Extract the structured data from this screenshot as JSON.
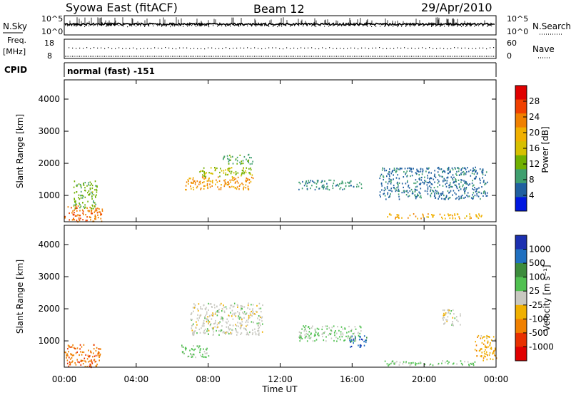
{
  "header": {
    "title": "Syowa East (fitACF)",
    "beam": "Beam 12",
    "date": "29/Apr/2010"
  },
  "strip_panels": {
    "noise": {
      "left_label": "N.Sky",
      "right_label": "N.Search",
      "left_ticks": [
        "10^5",
        "10^0"
      ],
      "right_ticks": [
        "10^5",
        "10^0"
      ]
    },
    "freq": {
      "left_label_top": "Freq.",
      "left_label_unit": "[MHz]",
      "right_label": "Nave",
      "left_ticks": [
        "18",
        "8"
      ],
      "right_ticks": [
        "60",
        "0"
      ]
    },
    "cpid": {
      "label": "CPID",
      "value": "normal (fast) -151"
    }
  },
  "power_panel": {
    "ylabel": "Slant Range [km]",
    "colorbar_label": "Power [dB]",
    "colorbar_ticks": [
      "28",
      "24",
      "20",
      "16",
      "12",
      "8",
      "4"
    ],
    "colors": [
      "#e00000",
      "#f04000",
      "#f08000",
      "#f0b000",
      "#d6c000",
      "#70b000",
      "#3f9f6f",
      "#2060a0",
      "#0018e0"
    ]
  },
  "velocity_panel": {
    "ylabel": "Slant Range [km]",
    "colorbar_label": "Velocity [m s⁻¹]",
    "colorbar_ticks": [
      "1000",
      "500",
      "100",
      "25",
      "-25",
      "-100",
      "-500",
      "-1000"
    ],
    "colors": [
      "#1c30b0",
      "#2070c0",
      "#3c8c3c",
      "#50c050",
      "#c8c8c0",
      "#f0b000",
      "#f08000",
      "#e83000",
      "#e00000"
    ]
  },
  "xaxis": {
    "label": "Time UT",
    "ticks": [
      "00:00",
      "04:00",
      "08:00",
      "12:00",
      "16:00",
      "20:00",
      "00:00"
    ]
  },
  "chart_data": [
    {
      "type": "heatmap",
      "title": "Power",
      "xlabel": "",
      "ylabel": "Slant Range [km]",
      "xlim": [
        0,
        24
      ],
      "ylim": [
        180,
        4600
      ],
      "yticks": [
        1000,
        2000,
        3000,
        4000
      ],
      "colorbar": {
        "label": "Power [dB]",
        "range": [
          0,
          32
        ],
        "ticks": [
          4,
          8,
          12,
          16,
          20,
          24,
          28
        ]
      },
      "regions": [
        {
          "t0": 0.0,
          "t1": 2.1,
          "r0": 200,
          "r1": 700,
          "value": 24
        },
        {
          "t0": 0.5,
          "t1": 1.8,
          "r0": 600,
          "r1": 1500,
          "value": 12
        },
        {
          "t0": 6.7,
          "t1": 10.5,
          "r0": 1200,
          "r1": 1600,
          "value": 22
        },
        {
          "t0": 7.5,
          "t1": 10.5,
          "r0": 1600,
          "r1": 1900,
          "value": 14
        },
        {
          "t0": 8.8,
          "t1": 10.5,
          "r0": 2000,
          "r1": 2300,
          "value": 10
        },
        {
          "t0": 13.0,
          "t1": 16.5,
          "r0": 1200,
          "r1": 1500,
          "value": 8
        },
        {
          "t0": 17.8,
          "t1": 23.2,
          "r0": 300,
          "r1": 450,
          "value": 20
        },
        {
          "t0": 17.5,
          "t1": 23.5,
          "r0": 900,
          "r1": 1900,
          "value": 6
        }
      ]
    },
    {
      "type": "heatmap",
      "title": "Velocity",
      "xlabel": "Time UT",
      "ylabel": "Slant Range [km]",
      "xlim": [
        0,
        24
      ],
      "ylim": [
        180,
        4600
      ],
      "yticks": [
        1000,
        2000,
        3000,
        4000
      ],
      "colorbar": {
        "label": "Velocity [m s⁻¹]",
        "range": [
          -1200,
          1200
        ],
        "ticks": [
          -1000,
          -500,
          -100,
          -25,
          25,
          100,
          500,
          1000
        ]
      },
      "regions": [
        {
          "t0": 0.0,
          "t1": 2.0,
          "r0": 200,
          "r1": 900,
          "value": -600
        },
        {
          "t0": 7.0,
          "t1": 11.0,
          "r0": 1200,
          "r1": 2200,
          "value": 0
        },
        {
          "t0": 6.5,
          "t1": 8.0,
          "r0": 500,
          "r1": 900,
          "value": 200
        },
        {
          "t0": 13.0,
          "t1": 16.5,
          "r0": 1000,
          "r1": 1500,
          "value": 150
        },
        {
          "t0": 15.8,
          "t1": 16.8,
          "r0": 800,
          "r1": 1200,
          "value": 800
        },
        {
          "t0": 17.8,
          "t1": 22.8,
          "r0": 250,
          "r1": 400,
          "value": 200
        },
        {
          "t0": 21.0,
          "t1": 22.0,
          "r0": 1500,
          "r1": 2000,
          "value": 0
        },
        {
          "t0": 22.8,
          "t1": 24.0,
          "r0": 400,
          "r1": 1200,
          "value": -300
        }
      ]
    }
  ]
}
